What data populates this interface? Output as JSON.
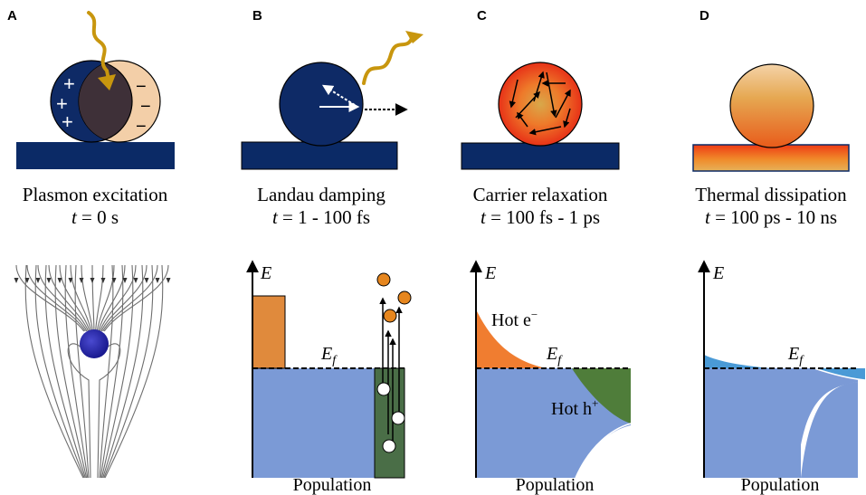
{
  "panels": [
    {
      "letter": "A",
      "caption": "Plasmon excitation",
      "time_var": "t",
      "time_value": " = 0 s",
      "charge_plus": "+",
      "charge_minus": "−"
    },
    {
      "letter": "B",
      "caption": "Landau damping",
      "time_var": "t",
      "time_value": " = 1 - 100 fs"
    },
    {
      "letter": "C",
      "caption": "Carrier relaxation",
      "time_var": "t",
      "time_value": " = 100 fs - 1 ps",
      "hot_electron": "Hot e",
      "hot_electron_sup": "−",
      "hot_hole": "Hot h",
      "hot_hole_sup": "+"
    },
    {
      "letter": "D",
      "caption": "Thermal dissipation",
      "time_var": "t",
      "time_value": " = 100 ps - 10 ns"
    }
  ],
  "axes": {
    "energy_label": "E",
    "fermi_label": "E",
    "fermi_sub": "f",
    "x_label": "Population"
  },
  "colors": {
    "navy": "#0b2a66",
    "sphere_blue": "#0e2a66",
    "skin": "#f3cfa8",
    "photon": "#c8960e",
    "band_blue": "#7b9ad6",
    "band_orange": "#e08a3c",
    "band_green": "#4a6e47",
    "hole_green": "#4f7d3a",
    "hot_orange": "#f07d30",
    "thermal_blue": "#4a9ad6"
  }
}
